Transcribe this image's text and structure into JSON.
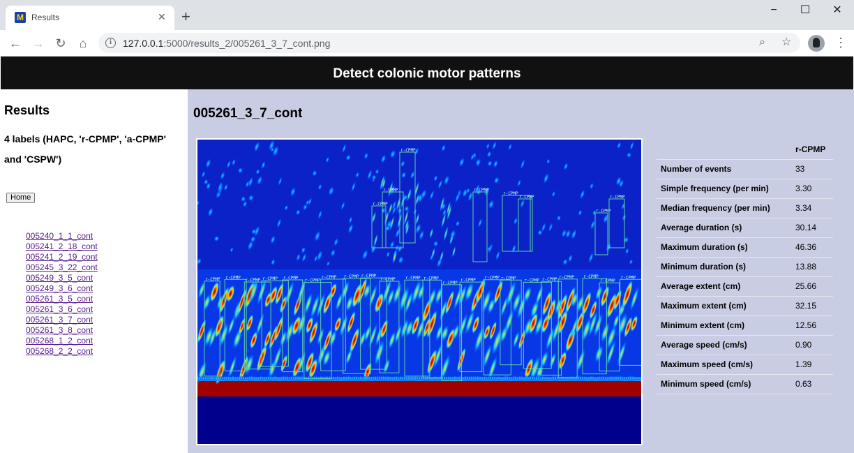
{
  "browser": {
    "tab_title": "Results",
    "favicon_letter": "M",
    "url_host": "127.0.0.1",
    "url_path": ":5000/results_2/005261_3_7_cont.png"
  },
  "header": {
    "title": "Detect colonic motor patterns"
  },
  "sidebar": {
    "title": "Results",
    "description": "4 labels (HAPC, 'r-CPMP', 'a-CPMP' and 'CSPW')",
    "home_label": "Home",
    "files": [
      "005240_1_1_cont",
      "005241_2_18_cont",
      "005241_2_19_cont",
      "005245_3_22_cont",
      "005249_3_5_cont",
      "005249_3_6_cont",
      "005261_3_5_cont",
      "005261_3_6_cont",
      "005261_3_7_cont",
      "005261_3_8_cont",
      "005268_1_2_cont",
      "005268_2_2_cont"
    ]
  },
  "main": {
    "title": "005261_3_7_cont",
    "image_label": "r-CPMP",
    "stats": {
      "column": "r-CPMP",
      "rows": [
        {
          "label": "Number of events",
          "value": "33"
        },
        {
          "label": "Simple frequency (per min)",
          "value": "3.30"
        },
        {
          "label": "Median frequency (per min)",
          "value": "3.34"
        },
        {
          "label": "Average duration (s)",
          "value": "30.14"
        },
        {
          "label": "Maximum duration (s)",
          "value": "46.36"
        },
        {
          "label": "Minimum duration (s)",
          "value": "13.88"
        },
        {
          "label": "Average extent (cm)",
          "value": "25.66"
        },
        {
          "label": "Maximum extent (cm)",
          "value": "32.15"
        },
        {
          "label": "Minimum extent (cm)",
          "value": "12.56"
        },
        {
          "label": "Average speed (cm/s)",
          "value": "0.90"
        },
        {
          "label": "Maximum speed (cm/s)",
          "value": "1.39"
        },
        {
          "label": "Minimum speed (cm/s)",
          "value": "0.63"
        }
      ]
    }
  },
  "colors": {
    "header_bg": "#111111",
    "main_bg": "#c9cde4",
    "plot_bg": "#00008d",
    "detection_box": "#5fd3a0",
    "hot_band": "#a00000"
  }
}
